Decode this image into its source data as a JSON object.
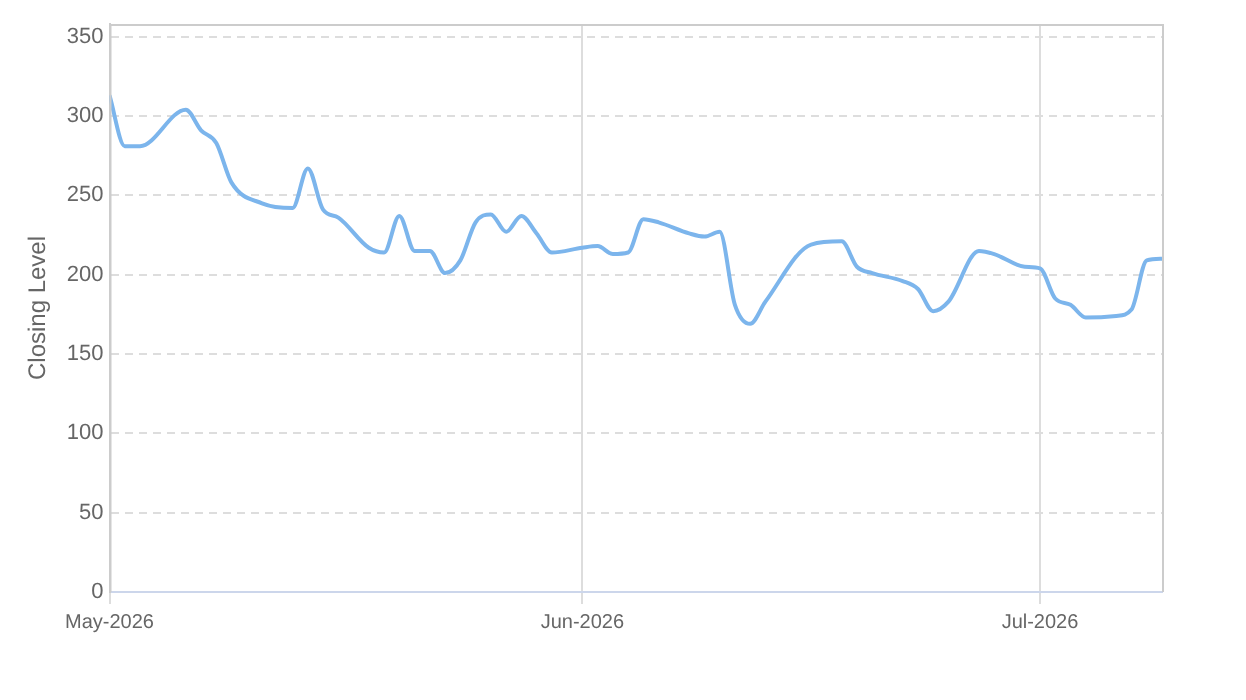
{
  "chart_data": {
    "type": "line",
    "ylabel": "Closing Level",
    "x": [
      "2026-05-01",
      "2026-05-02",
      "2026-05-03",
      "2026-05-06",
      "2026-05-07",
      "2026-05-08",
      "2026-05-09",
      "2026-05-11",
      "2026-05-13",
      "2026-05-14",
      "2026-05-15",
      "2026-05-16",
      "2026-05-18",
      "2026-05-19",
      "2026-05-20",
      "2026-05-21",
      "2026-05-22",
      "2026-05-23",
      "2026-05-24",
      "2026-05-25",
      "2026-05-26",
      "2026-05-27",
      "2026-05-28",
      "2026-05-29",
      "2026-05-30",
      "2026-06-01",
      "2026-06-02",
      "2026-06-03",
      "2026-06-04",
      "2026-06-05",
      "2026-06-06",
      "2026-06-08",
      "2026-06-09",
      "2026-06-10",
      "2026-06-11",
      "2026-06-12",
      "2026-06-13",
      "2026-06-16",
      "2026-06-18",
      "2026-06-19",
      "2026-06-20",
      "2026-06-22",
      "2026-06-23",
      "2026-06-24",
      "2026-06-25",
      "2026-06-27",
      "2026-06-28",
      "2026-06-30",
      "2026-07-01",
      "2026-07-02",
      "2026-07-03",
      "2026-07-04",
      "2026-07-06",
      "2026-07-07",
      "2026-07-08",
      "2026-07-09"
    ],
    "series": [
      {
        "color": "#7cb5ec",
        "values": [
          313,
          281,
          281,
          304,
          291,
          283,
          258,
          245,
          242,
          267,
          241,
          236,
          217,
          214,
          237,
          215,
          215,
          201,
          209,
          233,
          238,
          227,
          237,
          226,
          214,
          217,
          218,
          213,
          214,
          235,
          233,
          226,
          224,
          227,
          181,
          169,
          183,
          219,
          221,
          205,
          201,
          196,
          191,
          177,
          183,
          215,
          213,
          205,
          204,
          185,
          181,
          173,
          174,
          178,
          209,
          210
        ]
      }
    ],
    "xlim": [
      "2026-05-01",
      "2026-07-09"
    ],
    "xticks": [
      {
        "value": "2026-05-01",
        "label": "May-2026"
      },
      {
        "value": "2026-06-01",
        "label": "Jun-2026"
      },
      {
        "value": "2026-07-01",
        "label": "Jul-2026"
      }
    ],
    "ylim": [
      0,
      358
    ],
    "yticks": [
      0,
      50,
      100,
      150,
      200,
      250,
      300,
      350
    ],
    "grid": true,
    "legend": false,
    "marker": "none",
    "line_style": "solid"
  }
}
